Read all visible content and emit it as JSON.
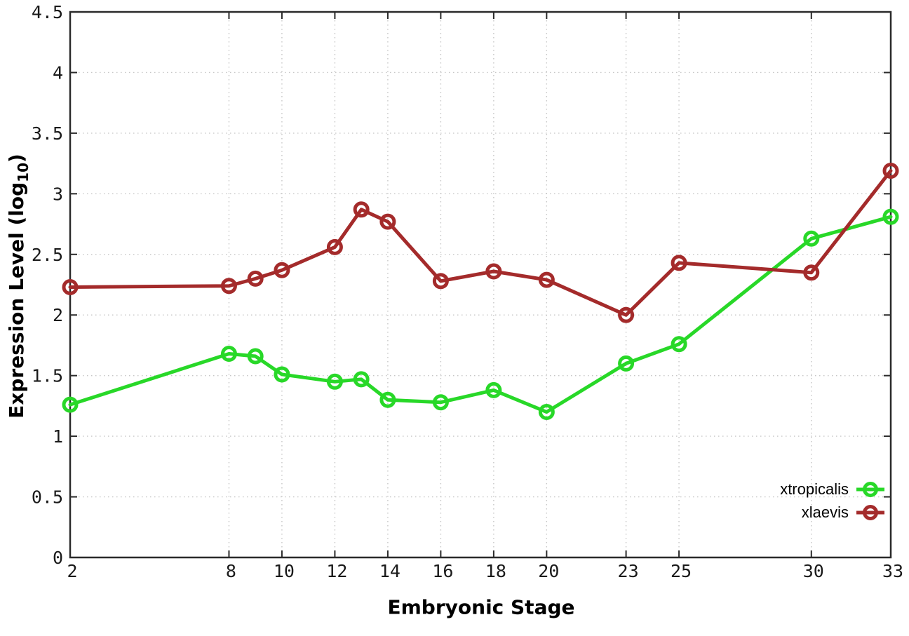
{
  "chart_data": {
    "type": "line",
    "title": "",
    "xlabel": "Embryonic Stage",
    "ylabel": {
      "prefix": "Expression Level (log",
      "sub": "10",
      "suffix": ")"
    },
    "xlim": [
      2,
      33
    ],
    "ylim": [
      0,
      4.5
    ],
    "grid": true,
    "legend_position": "bottom-right-inside",
    "x": [
      2,
      8,
      9,
      10,
      12,
      13,
      14,
      16,
      18,
      20,
      23,
      25,
      30,
      33
    ],
    "series": [
      {
        "name": "xtropicalis",
        "color": "#28d828",
        "values": [
          1.26,
          1.68,
          1.66,
          1.51,
          1.45,
          1.47,
          1.3,
          1.28,
          1.38,
          1.2,
          1.6,
          1.76,
          2.63,
          2.81
        ]
      },
      {
        "name": "xlaevis",
        "color": "#a42b2b",
        "values": [
          2.23,
          2.24,
          2.3,
          2.37,
          2.56,
          2.87,
          2.77,
          2.28,
          2.36,
          2.29,
          2.0,
          2.43,
          2.35,
          3.19
        ]
      }
    ],
    "x_ticks": {
      "values": [
        2,
        8,
        10,
        12,
        14,
        16,
        18,
        20,
        23,
        25,
        30,
        33
      ],
      "labels": [
        "2",
        "8",
        "10",
        "12",
        "14",
        "16",
        "18",
        "20",
        "23",
        "25",
        "30",
        "33"
      ]
    },
    "y_ticks": {
      "values": [
        0,
        0.5,
        1,
        1.5,
        2,
        2.5,
        3,
        3.5,
        4,
        4.5
      ],
      "labels": [
        "0",
        "0.5",
        "1",
        "1.5",
        "2",
        "2.5",
        "3",
        "3.5",
        "4",
        "4.5"
      ]
    },
    "colors": {
      "grid": "#c6c6c6",
      "axis": "#2a2a2a",
      "tick_labels": "#1a1a1a",
      "text": "#000000"
    }
  }
}
